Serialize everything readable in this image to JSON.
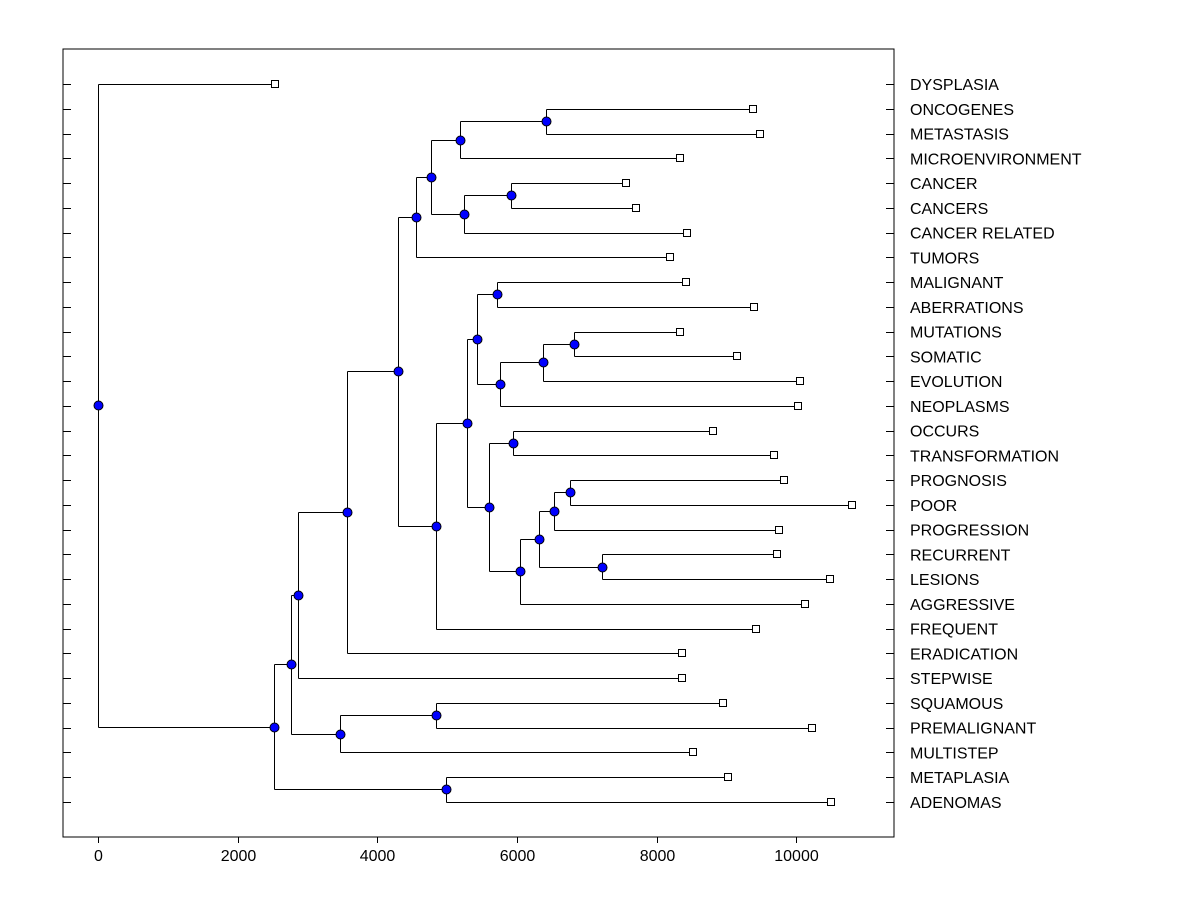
{
  "chart_data": {
    "type": "dendrogram",
    "title": "",
    "xlabel": "",
    "ylabel": "",
    "xlim": [
      -500,
      11400
    ],
    "xticks": [
      0,
      2000,
      4000,
      6000,
      8000,
      10000
    ],
    "grid": false,
    "node_color": "#0000ff",
    "labels": [
      "DYSPLASIA",
      "ONCOGENES",
      "METASTASIS",
      "MICROENVIRONMENT",
      "CANCER",
      "CANCERS",
      "CANCER RELATED",
      "TUMORS",
      "MALIGNANT",
      "ABERRATIONS",
      "MUTATIONS",
      "SOMATIC",
      "EVOLUTION",
      "NEOPLASMS",
      "OCCURS",
      "TRANSFORMATION",
      "PROGNOSIS",
      "POOR",
      "PROGRESSION",
      "RECURRENT",
      "LESIONS",
      "AGGRESSIVE",
      "FREQUENT",
      "ERADICATION",
      "STEPWISE",
      "SQUAMOUS",
      "PREMALIGNANT",
      "MULTISTEP",
      "METAPLASIA",
      "ADENOMAS"
    ],
    "leaf_values": [
      2530,
      9380,
      9480,
      8340,
      7560,
      7710,
      8440,
      8190,
      8420,
      9400,
      8340,
      9150,
      10050,
      10030,
      8810,
      9680,
      9830,
      10800,
      9750,
      9730,
      10480,
      10130,
      9420,
      8360,
      8360,
      8950,
      10220,
      8520,
      9020,
      10500
    ],
    "nodes": [
      {
        "id": "n1",
        "value": 6420,
        "children": [
          "ONCOGENES",
          "METASTASIS"
        ]
      },
      {
        "id": "n2",
        "value": 5180,
        "children": [
          "n1",
          "MICROENVIRONMENT"
        ]
      },
      {
        "id": "n3",
        "value": 5920,
        "children": [
          "CANCER",
          "CANCERS"
        ]
      },
      {
        "id": "n4",
        "value": 5240,
        "children": [
          "n3",
          "CANCER RELATED"
        ]
      },
      {
        "id": "n5",
        "value": 4770,
        "children": [
          "n2",
          "n4"
        ]
      },
      {
        "id": "n6",
        "value": 4560,
        "children": [
          "n5",
          "TUMORS"
        ]
      },
      {
        "id": "n7",
        "value": 5720,
        "children": [
          "MALIGNANT",
          "ABERRATIONS"
        ]
      },
      {
        "id": "n8",
        "value": 6820,
        "children": [
          "MUTATIONS",
          "SOMATIC"
        ]
      },
      {
        "id": "n9",
        "value": 6380,
        "children": [
          "n8",
          "EVOLUTION"
        ]
      },
      {
        "id": "n10",
        "value": 5760,
        "children": [
          "n9",
          "NEOPLASMS"
        ]
      },
      {
        "id": "n11",
        "value": 5430,
        "children": [
          "n7",
          "n10"
        ]
      },
      {
        "id": "n12",
        "value": 5950,
        "children": [
          "OCCURS",
          "TRANSFORMATION"
        ]
      },
      {
        "id": "n13",
        "value": 6760,
        "children": [
          "PROGNOSIS",
          "POOR"
        ]
      },
      {
        "id": "n14",
        "value": 6530,
        "children": [
          "n13",
          "PROGRESSION"
        ]
      },
      {
        "id": "n15",
        "value": 7220,
        "children": [
          "RECURRENT",
          "LESIONS"
        ]
      },
      {
        "id": "n16",
        "value": 6320,
        "children": [
          "n14",
          "n15"
        ]
      },
      {
        "id": "n17",
        "value": 6050,
        "children": [
          "n16",
          "AGGRESSIVE"
        ]
      },
      {
        "id": "n18",
        "value": 5600,
        "children": [
          "n12",
          "n17"
        ]
      },
      {
        "id": "n19",
        "value": 5290,
        "children": [
          "n11",
          "n18"
        ]
      },
      {
        "id": "n20",
        "value": 4840,
        "children": [
          "n19",
          "FREQUENT"
        ]
      },
      {
        "id": "n21",
        "value": 4300,
        "children": [
          "n6",
          "n20"
        ]
      },
      {
        "id": "n22",
        "value": 3570,
        "children": [
          "n21",
          "ERADICATION"
        ]
      },
      {
        "id": "n23",
        "value": 2870,
        "children": [
          "n22",
          "STEPWISE"
        ]
      },
      {
        "id": "n24",
        "value": 4840,
        "children": [
          "SQUAMOUS",
          "PREMALIGNANT"
        ]
      },
      {
        "id": "n25",
        "value": 3460,
        "children": [
          "n24",
          "MULTISTEP"
        ]
      },
      {
        "id": "n26",
        "value": 2770,
        "children": [
          "n23",
          "n25"
        ]
      },
      {
        "id": "n27",
        "value": 4990,
        "children": [
          "METAPLASIA",
          "ADENOMAS"
        ]
      },
      {
        "id": "n28",
        "value": 2520,
        "children": [
          "n26",
          "n27"
        ]
      },
      {
        "id": "n29",
        "value": 0,
        "children": [
          "DYSPLASIA",
          "n28"
        ]
      }
    ]
  }
}
